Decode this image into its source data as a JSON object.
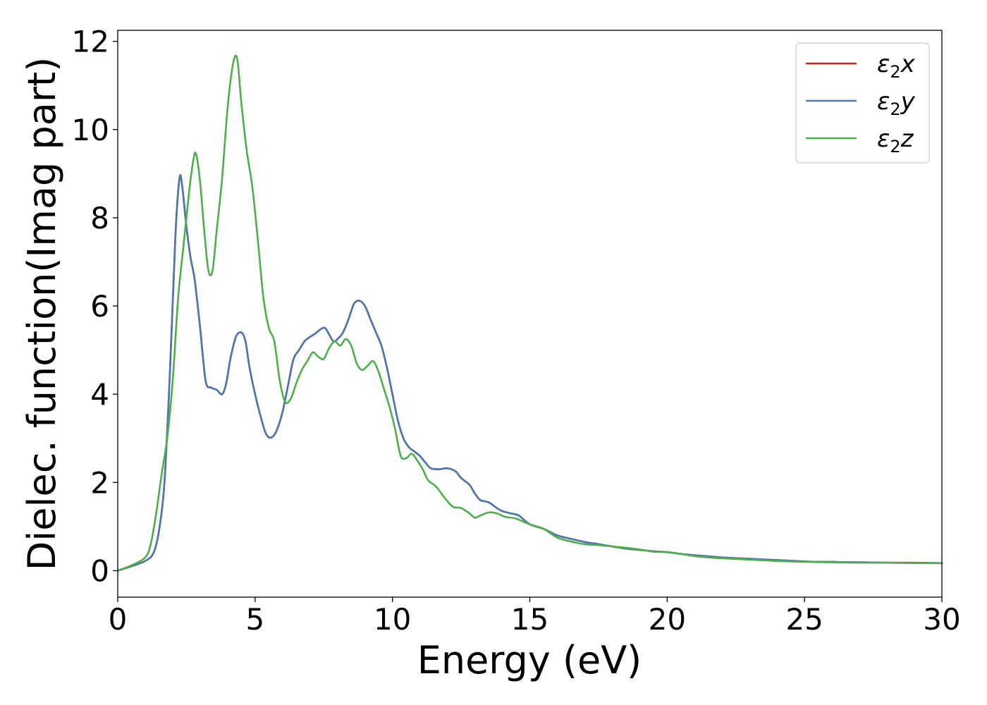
{
  "chart_data": {
    "type": "line",
    "xlabel": "Energy (eV)",
    "ylabel": "Dielec. function(Imag part)",
    "xlim": [
      0,
      30
    ],
    "ylim": [
      -0.6,
      12.25
    ],
    "xticks": [
      0,
      5,
      10,
      15,
      20,
      25,
      30
    ],
    "yticks": [
      0,
      2,
      4,
      6,
      8,
      10,
      12
    ],
    "grid": false,
    "legend_position": "top-right",
    "series": [
      {
        "name": "ε2x",
        "legend_main": "ε",
        "legend_sub": "2",
        "legend_suffix": "x",
        "color": "#e41a1c",
        "x": [
          0,
          0.5,
          1.0,
          1.3,
          1.5,
          1.7,
          1.9,
          2.1,
          2.25,
          2.35,
          2.5,
          2.65,
          2.8,
          3.0,
          3.2,
          3.4,
          3.6,
          3.8,
          3.95,
          4.1,
          4.3,
          4.5,
          4.65,
          4.8,
          5.0,
          5.2,
          5.4,
          5.6,
          5.8,
          6.0,
          6.2,
          6.4,
          6.6,
          6.8,
          7.0,
          7.2,
          7.4,
          7.55,
          7.7,
          7.85,
          8.0,
          8.2,
          8.4,
          8.6,
          8.8,
          9.0,
          9.2,
          9.4,
          9.6,
          9.8,
          10.0,
          10.2,
          10.4,
          10.6,
          10.8,
          11.0,
          11.2,
          11.4,
          11.7,
          12.0,
          12.3,
          12.5,
          12.8,
          13.0,
          13.2,
          13.5,
          13.8,
          14.0,
          14.3,
          14.6,
          15.0,
          15.5,
          16.0,
          16.5,
          17.0,
          17.5,
          18.0,
          18.5,
          19.0,
          19.5,
          20.0,
          20.5,
          21.0,
          22.0,
          23.0,
          24.0,
          25.0,
          25.5,
          26.0,
          26.5,
          27.0,
          28.0,
          29.0,
          30.0
        ],
        "values": [
          0.0,
          0.1,
          0.22,
          0.4,
          0.9,
          2.0,
          4.5,
          7.6,
          8.9,
          8.7,
          7.8,
          7.1,
          6.6,
          5.5,
          4.3,
          4.15,
          4.1,
          4.0,
          4.25,
          4.8,
          5.3,
          5.4,
          5.2,
          4.6,
          4.0,
          3.5,
          3.1,
          3.02,
          3.2,
          3.6,
          4.2,
          4.8,
          5.0,
          5.2,
          5.3,
          5.38,
          5.48,
          5.5,
          5.35,
          5.2,
          5.25,
          5.4,
          5.7,
          6.05,
          6.12,
          6.0,
          5.7,
          5.4,
          5.1,
          4.6,
          4.0,
          3.4,
          3.0,
          2.8,
          2.7,
          2.6,
          2.45,
          2.32,
          2.3,
          2.32,
          2.25,
          2.1,
          1.95,
          1.75,
          1.6,
          1.55,
          1.42,
          1.35,
          1.3,
          1.25,
          1.05,
          0.95,
          0.8,
          0.72,
          0.65,
          0.6,
          0.55,
          0.5,
          0.47,
          0.44,
          0.42,
          0.38,
          0.35,
          0.3,
          0.27,
          0.24,
          0.21,
          0.2,
          0.2,
          0.19,
          0.19,
          0.18,
          0.18,
          0.17
        ]
      },
      {
        "name": "ε2y",
        "legend_main": "ε",
        "legend_sub": "2",
        "legend_suffix": "y",
        "color": "#4a78b5",
        "x": [
          0,
          0.5,
          1.0,
          1.3,
          1.5,
          1.7,
          1.9,
          2.1,
          2.25,
          2.35,
          2.5,
          2.65,
          2.8,
          3.0,
          3.2,
          3.4,
          3.6,
          3.8,
          3.95,
          4.1,
          4.3,
          4.5,
          4.65,
          4.8,
          5.0,
          5.2,
          5.4,
          5.6,
          5.8,
          6.0,
          6.2,
          6.4,
          6.6,
          6.8,
          7.0,
          7.2,
          7.4,
          7.55,
          7.7,
          7.85,
          8.0,
          8.2,
          8.4,
          8.6,
          8.8,
          9.0,
          9.2,
          9.4,
          9.6,
          9.8,
          10.0,
          10.2,
          10.4,
          10.6,
          10.8,
          11.0,
          11.2,
          11.4,
          11.7,
          12.0,
          12.3,
          12.5,
          12.8,
          13.0,
          13.2,
          13.5,
          13.8,
          14.0,
          14.3,
          14.6,
          15.0,
          15.5,
          16.0,
          16.5,
          17.0,
          17.5,
          18.0,
          18.5,
          19.0,
          19.5,
          20.0,
          20.5,
          21.0,
          22.0,
          23.0,
          24.0,
          25.0,
          25.5,
          26.0,
          26.5,
          27.0,
          28.0,
          29.0,
          30.0
        ],
        "values": [
          0.0,
          0.1,
          0.22,
          0.4,
          0.9,
          2.0,
          4.5,
          7.6,
          8.9,
          8.7,
          7.8,
          7.1,
          6.6,
          5.5,
          4.3,
          4.15,
          4.1,
          4.0,
          4.25,
          4.8,
          5.3,
          5.4,
          5.2,
          4.6,
          4.0,
          3.5,
          3.1,
          3.02,
          3.2,
          3.6,
          4.2,
          4.8,
          5.0,
          5.2,
          5.3,
          5.38,
          5.48,
          5.5,
          5.35,
          5.2,
          5.25,
          5.4,
          5.7,
          6.05,
          6.12,
          6.0,
          5.7,
          5.4,
          5.1,
          4.6,
          4.0,
          3.4,
          3.0,
          2.8,
          2.7,
          2.6,
          2.45,
          2.32,
          2.3,
          2.32,
          2.25,
          2.1,
          1.95,
          1.75,
          1.6,
          1.55,
          1.42,
          1.35,
          1.3,
          1.25,
          1.05,
          0.95,
          0.8,
          0.72,
          0.65,
          0.6,
          0.55,
          0.5,
          0.47,
          0.44,
          0.42,
          0.38,
          0.35,
          0.3,
          0.27,
          0.24,
          0.21,
          0.2,
          0.2,
          0.19,
          0.19,
          0.18,
          0.18,
          0.17
        ]
      },
      {
        "name": "ε2z",
        "legend_main": "ε",
        "legend_sub": "2",
        "legend_suffix": "z",
        "color": "#4daf4a",
        "x": [
          0,
          0.5,
          1.0,
          1.2,
          1.4,
          1.6,
          1.8,
          2.0,
          2.2,
          2.4,
          2.6,
          2.75,
          2.85,
          3.0,
          3.15,
          3.3,
          3.45,
          3.6,
          3.8,
          4.0,
          4.2,
          4.35,
          4.5,
          4.7,
          4.9,
          5.1,
          5.3,
          5.5,
          5.7,
          5.9,
          6.1,
          6.3,
          6.5,
          6.7,
          6.9,
          7.1,
          7.3,
          7.5,
          7.7,
          7.9,
          8.1,
          8.3,
          8.5,
          8.7,
          8.9,
          9.1,
          9.3,
          9.5,
          9.7,
          9.9,
          10.1,
          10.3,
          10.5,
          10.7,
          10.9,
          11.1,
          11.3,
          11.6,
          11.9,
          12.2,
          12.5,
          12.8,
          13.0,
          13.2,
          13.5,
          13.8,
          14.1,
          14.5,
          15.0,
          15.5,
          16.0,
          16.5,
          17.0,
          17.5,
          18.0,
          18.5,
          19.0,
          19.5,
          20.0,
          20.5,
          21.0,
          21.5,
          22.0,
          23.0,
          24.0,
          25.0,
          26.0,
          27.0,
          28.0,
          29.0,
          30.0
        ],
        "values": [
          0.0,
          0.12,
          0.3,
          0.6,
          1.3,
          2.2,
          3.0,
          4.3,
          6.2,
          7.4,
          8.6,
          9.3,
          9.45,
          8.8,
          7.7,
          6.8,
          6.8,
          7.7,
          8.9,
          10.5,
          11.5,
          11.6,
          10.6,
          9.5,
          8.7,
          7.5,
          6.2,
          5.5,
          5.2,
          4.3,
          3.82,
          3.9,
          4.25,
          4.55,
          4.75,
          4.95,
          4.85,
          4.8,
          5.05,
          5.2,
          5.1,
          5.25,
          5.1,
          4.7,
          4.55,
          4.65,
          4.75,
          4.5,
          4.1,
          3.7,
          3.2,
          2.6,
          2.55,
          2.65,
          2.5,
          2.3,
          2.05,
          1.9,
          1.65,
          1.45,
          1.42,
          1.3,
          1.2,
          1.25,
          1.32,
          1.3,
          1.22,
          1.18,
          1.05,
          0.95,
          0.75,
          0.66,
          0.6,
          0.58,
          0.55,
          0.52,
          0.48,
          0.43,
          0.42,
          0.38,
          0.33,
          0.3,
          0.28,
          0.25,
          0.22,
          0.2,
          0.19,
          0.18,
          0.18,
          0.17,
          0.17
        ]
      }
    ]
  }
}
